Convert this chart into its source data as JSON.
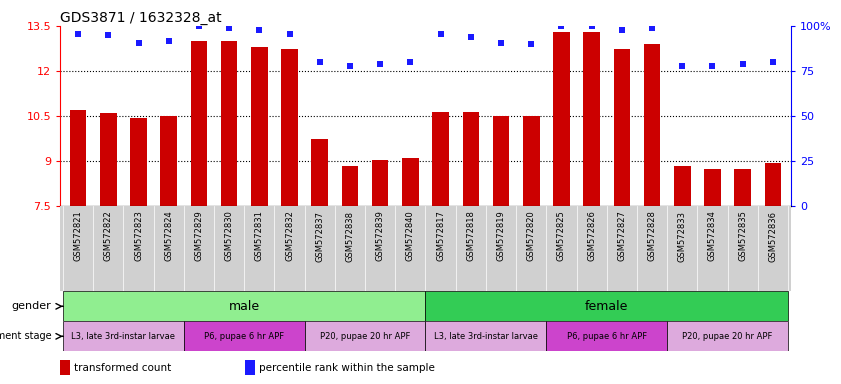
{
  "title": "GDS3871 / 1632328_at",
  "samples": [
    "GSM572821",
    "GSM572822",
    "GSM572823",
    "GSM572824",
    "GSM572829",
    "GSM572830",
    "GSM572831",
    "GSM572832",
    "GSM572837",
    "GSM572838",
    "GSM572839",
    "GSM572840",
    "GSM572817",
    "GSM572818",
    "GSM572819",
    "GSM572820",
    "GSM572825",
    "GSM572826",
    "GSM572827",
    "GSM572828",
    "GSM572833",
    "GSM572834",
    "GSM572835",
    "GSM572836"
  ],
  "transformed_count": [
    10.7,
    10.6,
    10.45,
    10.5,
    13.0,
    13.0,
    12.8,
    12.75,
    9.75,
    8.85,
    9.05,
    9.1,
    10.65,
    10.65,
    10.5,
    10.5,
    13.3,
    13.3,
    12.75,
    12.9,
    8.85,
    8.75,
    8.75,
    8.95
  ],
  "percentile_rank": [
    96,
    95,
    91,
    92,
    100,
    99,
    98,
    96,
    80,
    78,
    79,
    80,
    96,
    94,
    91,
    90,
    100,
    100,
    98,
    99,
    78,
    78,
    79,
    80
  ],
  "ylim_left": [
    7.5,
    13.5
  ],
  "ylim_right": [
    0,
    100
  ],
  "yticks_left": [
    7.5,
    9.0,
    10.5,
    12.0,
    13.5
  ],
  "ytick_labels_left": [
    "7.5",
    "9",
    "10.5",
    "12",
    "13.5"
  ],
  "yticks_right": [
    0,
    25,
    50,
    75,
    100
  ],
  "ytick_labels_right": [
    "0",
    "25",
    "50",
    "75",
    "100%"
  ],
  "bar_color": "#cc0000",
  "dot_color": "#1a1aff",
  "gender_male_color": "#90ee90",
  "gender_female_color": "#33cc55",
  "dev_stage_light": "#ddaadd",
  "dev_stage_dark": "#cc44cc",
  "stages": [
    {
      "label": "L3, late 3rd-instar larvae",
      "start": 0,
      "end": 3,
      "dark": false
    },
    {
      "label": "P6, pupae 6 hr APF",
      "start": 4,
      "end": 7,
      "dark": true
    },
    {
      "label": "P20, pupae 20 hr APF",
      "start": 8,
      "end": 11,
      "dark": false
    },
    {
      "label": "L3, late 3rd-instar larvae",
      "start": 12,
      "end": 15,
      "dark": false
    },
    {
      "label": "P6, pupae 6 hr APF",
      "start": 16,
      "end": 19,
      "dark": true
    },
    {
      "label": "P20, pupae 20 hr APF",
      "start": 20,
      "end": 23,
      "dark": false
    }
  ]
}
